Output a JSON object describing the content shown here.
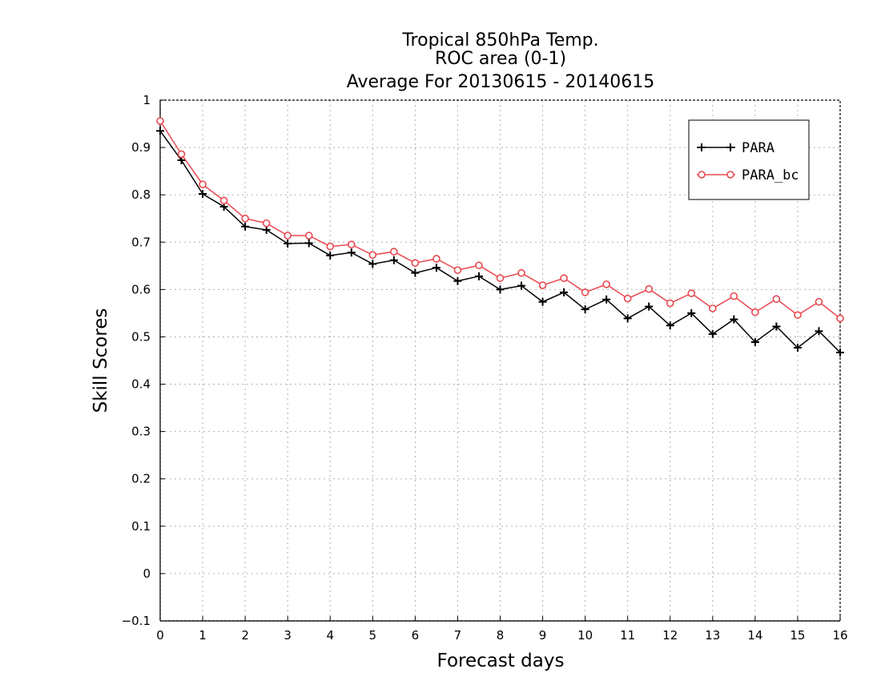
{
  "chart_data": {
    "type": "line",
    "title_lines": [
      "Tropical 850hPa Temp.",
      "ROC area (0-1)",
      "Average For 20130615 - 20140615"
    ],
    "xlabel": "Forecast days",
    "ylabel": "Skill Scores",
    "xlim": [
      0,
      16
    ],
    "ylim": [
      -0.1,
      1
    ],
    "xticks": [
      0,
      1,
      2,
      3,
      4,
      5,
      6,
      7,
      8,
      9,
      10,
      11,
      12,
      13,
      14,
      15,
      16
    ],
    "yticks": [
      -0.1,
      0,
      0.1,
      0.2,
      0.3,
      0.4,
      0.5,
      0.6,
      0.7,
      0.8,
      0.9,
      1
    ],
    "ytick_labels": [
      "−0.1",
      "0",
      "0.1",
      "0.2",
      "0.3",
      "0.4",
      "0.5",
      "0.6",
      "0.7",
      "0.8",
      "0.9",
      "1"
    ],
    "grid": true,
    "legend_position": "top-right",
    "x": [
      0,
      0.5,
      1,
      1.5,
      2,
      2.5,
      3,
      3.5,
      4,
      4.5,
      5,
      5.5,
      6,
      6.5,
      7,
      7.5,
      8,
      8.5,
      9,
      9.5,
      10,
      10.5,
      11,
      11.5,
      12,
      12.5,
      13,
      13.5,
      14,
      14.5,
      15,
      15.5,
      16
    ],
    "series": [
      {
        "name": "PARA",
        "color": "#000000",
        "marker": "plus",
        "values": [
          0.935,
          0.873,
          0.802,
          0.775,
          0.733,
          0.726,
          0.697,
          0.698,
          0.672,
          0.678,
          0.654,
          0.662,
          0.635,
          0.646,
          0.618,
          0.628,
          0.6,
          0.608,
          0.574,
          0.594,
          0.558,
          0.579,
          0.539,
          0.564,
          0.524,
          0.55,
          0.506,
          0.537,
          0.489,
          0.522,
          0.477,
          0.512,
          0.467
        ]
      },
      {
        "name": "PARA_bc",
        "color": "#e8484f",
        "marker": "circle",
        "values": [
          0.956,
          0.886,
          0.822,
          0.788,
          0.75,
          0.74,
          0.714,
          0.714,
          0.691,
          0.695,
          0.673,
          0.68,
          0.656,
          0.665,
          0.641,
          0.651,
          0.624,
          0.635,
          0.609,
          0.624,
          0.594,
          0.611,
          0.581,
          0.601,
          0.571,
          0.592,
          0.56,
          0.586,
          0.552,
          0.58,
          0.546,
          0.574,
          0.539
        ]
      }
    ]
  }
}
